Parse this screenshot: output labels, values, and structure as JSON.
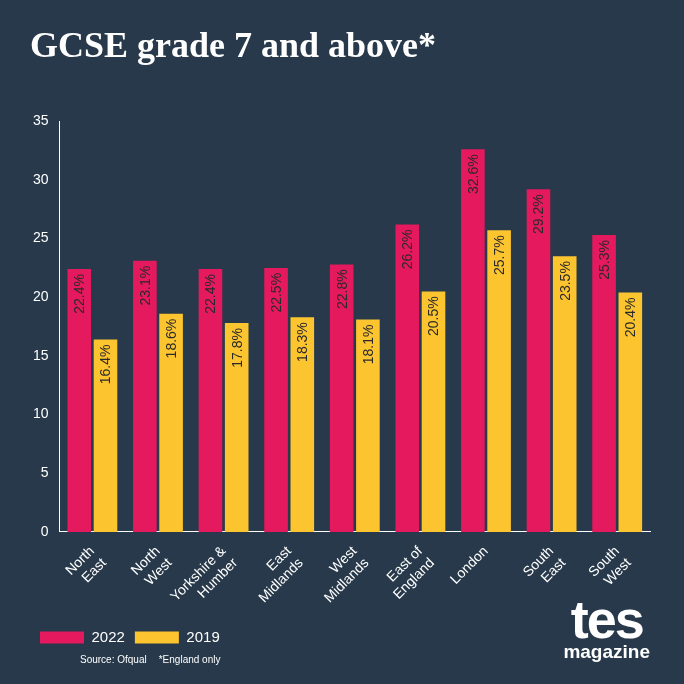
{
  "chart_data": {
    "type": "bar",
    "title": "GCSE grade 7 and above*",
    "categories": [
      "North East",
      "North West",
      "Yorkshire & Humber",
      "East Midlands",
      "West Midlands",
      "East of England",
      "London",
      "South East",
      "South West"
    ],
    "series": [
      {
        "name": "2022",
        "color": "#e5195e",
        "values": [
          22.4,
          23.1,
          22.4,
          22.5,
          22.8,
          26.2,
          32.6,
          29.2,
          25.3
        ],
        "value_labels": [
          "22.4%",
          "23.1%",
          "22.4%",
          "22.5%",
          "22.8%",
          "26.2%",
          "32.6%",
          "29.2%",
          "25.3%"
        ]
      },
      {
        "name": "2019",
        "color": "#fcc42f",
        "values": [
          16.4,
          18.6,
          17.8,
          18.3,
          18.1,
          20.5,
          25.7,
          23.5,
          20.4
        ],
        "value_labels": [
          "16.4%",
          "18.6%",
          "17.8%",
          "18.3%",
          "18.1%",
          "20.5%",
          "25.7%",
          "23.5%",
          "20.4%"
        ]
      }
    ],
    "ylim": [
      0,
      35
    ],
    "yticks": [
      0,
      5,
      10,
      15,
      20,
      25,
      30,
      35
    ],
    "grid": false,
    "legend": "bottom-left",
    "data_labels": true,
    "annotations": [
      "Source: Ofqual",
      "*England only",
      "tes",
      "magazine"
    ]
  }
}
